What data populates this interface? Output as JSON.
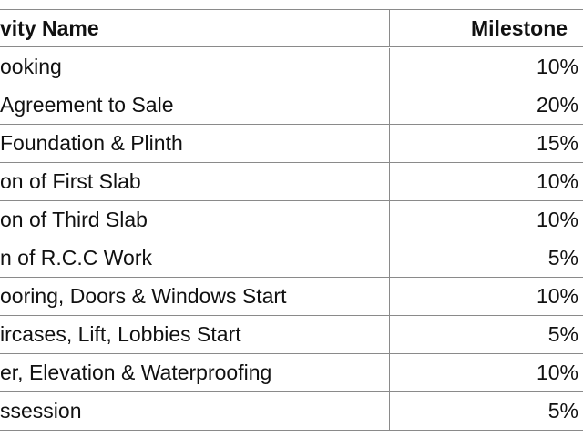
{
  "table": {
    "header": [
      "vity Name",
      "Milestone"
    ],
    "rows": [
      [
        "ooking",
        "10%"
      ],
      [
        "Agreement to Sale",
        "20%"
      ],
      [
        "Foundation & Plinth",
        "15%"
      ],
      [
        "on of First Slab",
        "10%"
      ],
      [
        "on of Third Slab",
        "10%"
      ],
      [
        "n of R.C.C Work",
        "5%"
      ],
      [
        "ooring, Doors & Windows Start",
        "10%"
      ],
      [
        "ircases, Lift, Lobbies Start",
        "5%"
      ],
      [
        "er, Elevation & Waterproofing",
        "10%"
      ],
      [
        "ssession",
        "5%"
      ]
    ]
  }
}
